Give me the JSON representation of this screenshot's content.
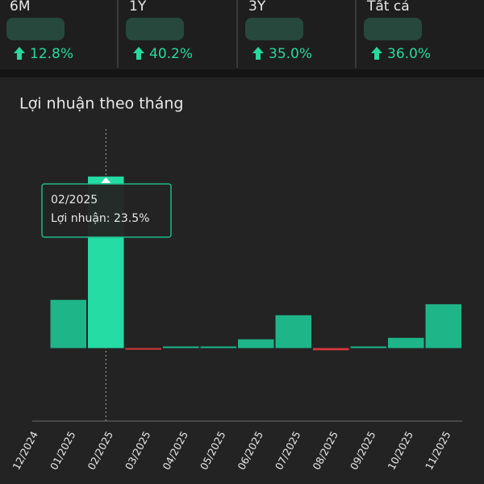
{
  "stats": [
    {
      "period": "6M",
      "change": "12.8%"
    },
    {
      "period": "1Y",
      "change": "40.2%"
    },
    {
      "period": "3Y",
      "change": "35.0%"
    },
    {
      "period": "Tất cả",
      "change": "36.0%"
    }
  ],
  "chart_data": {
    "type": "bar",
    "title": "Lợi nhuận theo tháng",
    "categories": [
      "12/2024",
      "01/2025",
      "02/2025",
      "03/2025",
      "04/2025",
      "05/2025",
      "06/2025",
      "07/2025",
      "08/2025",
      "09/2025",
      "10/2025",
      "11/2025"
    ],
    "values": [
      null,
      6.6,
      23.5,
      -0.2,
      0.1,
      0.1,
      1.2,
      4.5,
      -0.3,
      0.2,
      1.4,
      6.0
    ],
    "color": "#1fbf8f",
    "negative_color": "#e0393e",
    "ylim": [
      -10,
      30
    ],
    "tooltip": {
      "index": 2,
      "text": "Lợi nhuận: 23.5%"
    }
  }
}
